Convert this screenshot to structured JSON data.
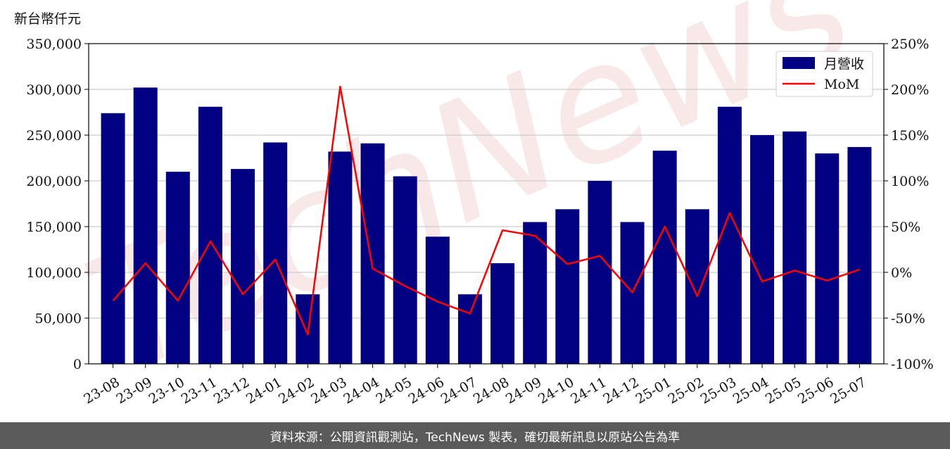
{
  "unit_label": "新台幣仟元",
  "watermark": "TechNews",
  "footer": {
    "source": "資料來源：公開資訊觀測站，TechNews 製表，確切最新訊息以原站公告為準"
  },
  "colors": {
    "bar": "#000080",
    "line": "#ff0000",
    "grid": "#cccccc",
    "footer_bg": "#5a5a5a",
    "watermark": "#f6d9d9"
  },
  "chart_data": {
    "type": "bar",
    "categories": [
      "23-08",
      "23-09",
      "23-10",
      "23-11",
      "23-12",
      "24-01",
      "24-02",
      "24-03",
      "24-04",
      "24-05",
      "24-06",
      "24-07",
      "24-08",
      "24-09",
      "24-10",
      "24-11",
      "24-12",
      "25-01",
      "25-02",
      "25-03",
      "25-04",
      "25-05",
      "25-06",
      "25-07"
    ],
    "series": [
      {
        "name": "月營收",
        "type": "bar",
        "axis": "left",
        "values": [
          274000,
          302000,
          210000,
          281000,
          213000,
          242000,
          76000,
          232000,
          241000,
          205000,
          139000,
          76000,
          110000,
          155000,
          169000,
          200000,
          155000,
          233000,
          169000,
          281000,
          250000,
          254000,
          230000,
          237000
        ]
      },
      {
        "name": "MoM",
        "type": "line",
        "axis": "right",
        "values": [
          -31,
          10,
          -31,
          34,
          -24,
          14,
          -68,
          203,
          4,
          -15,
          -32,
          -45,
          46,
          40,
          9,
          18,
          -22,
          50,
          -26,
          65,
          -10,
          2,
          -9,
          3
        ]
      }
    ],
    "left_axis": {
      "ylim": [
        0,
        350000
      ],
      "ticks": [
        "0",
        "50,000",
        "100,000",
        "150,000",
        "200,000",
        "250,000",
        "300,000",
        "350,000"
      ]
    },
    "right_axis": {
      "ylim": [
        -100,
        250
      ],
      "ticks": [
        "-100%",
        "-50%",
        "0%",
        "50%",
        "100%",
        "150%",
        "200%",
        "250%"
      ]
    },
    "grid": true,
    "legend": "top-right"
  }
}
